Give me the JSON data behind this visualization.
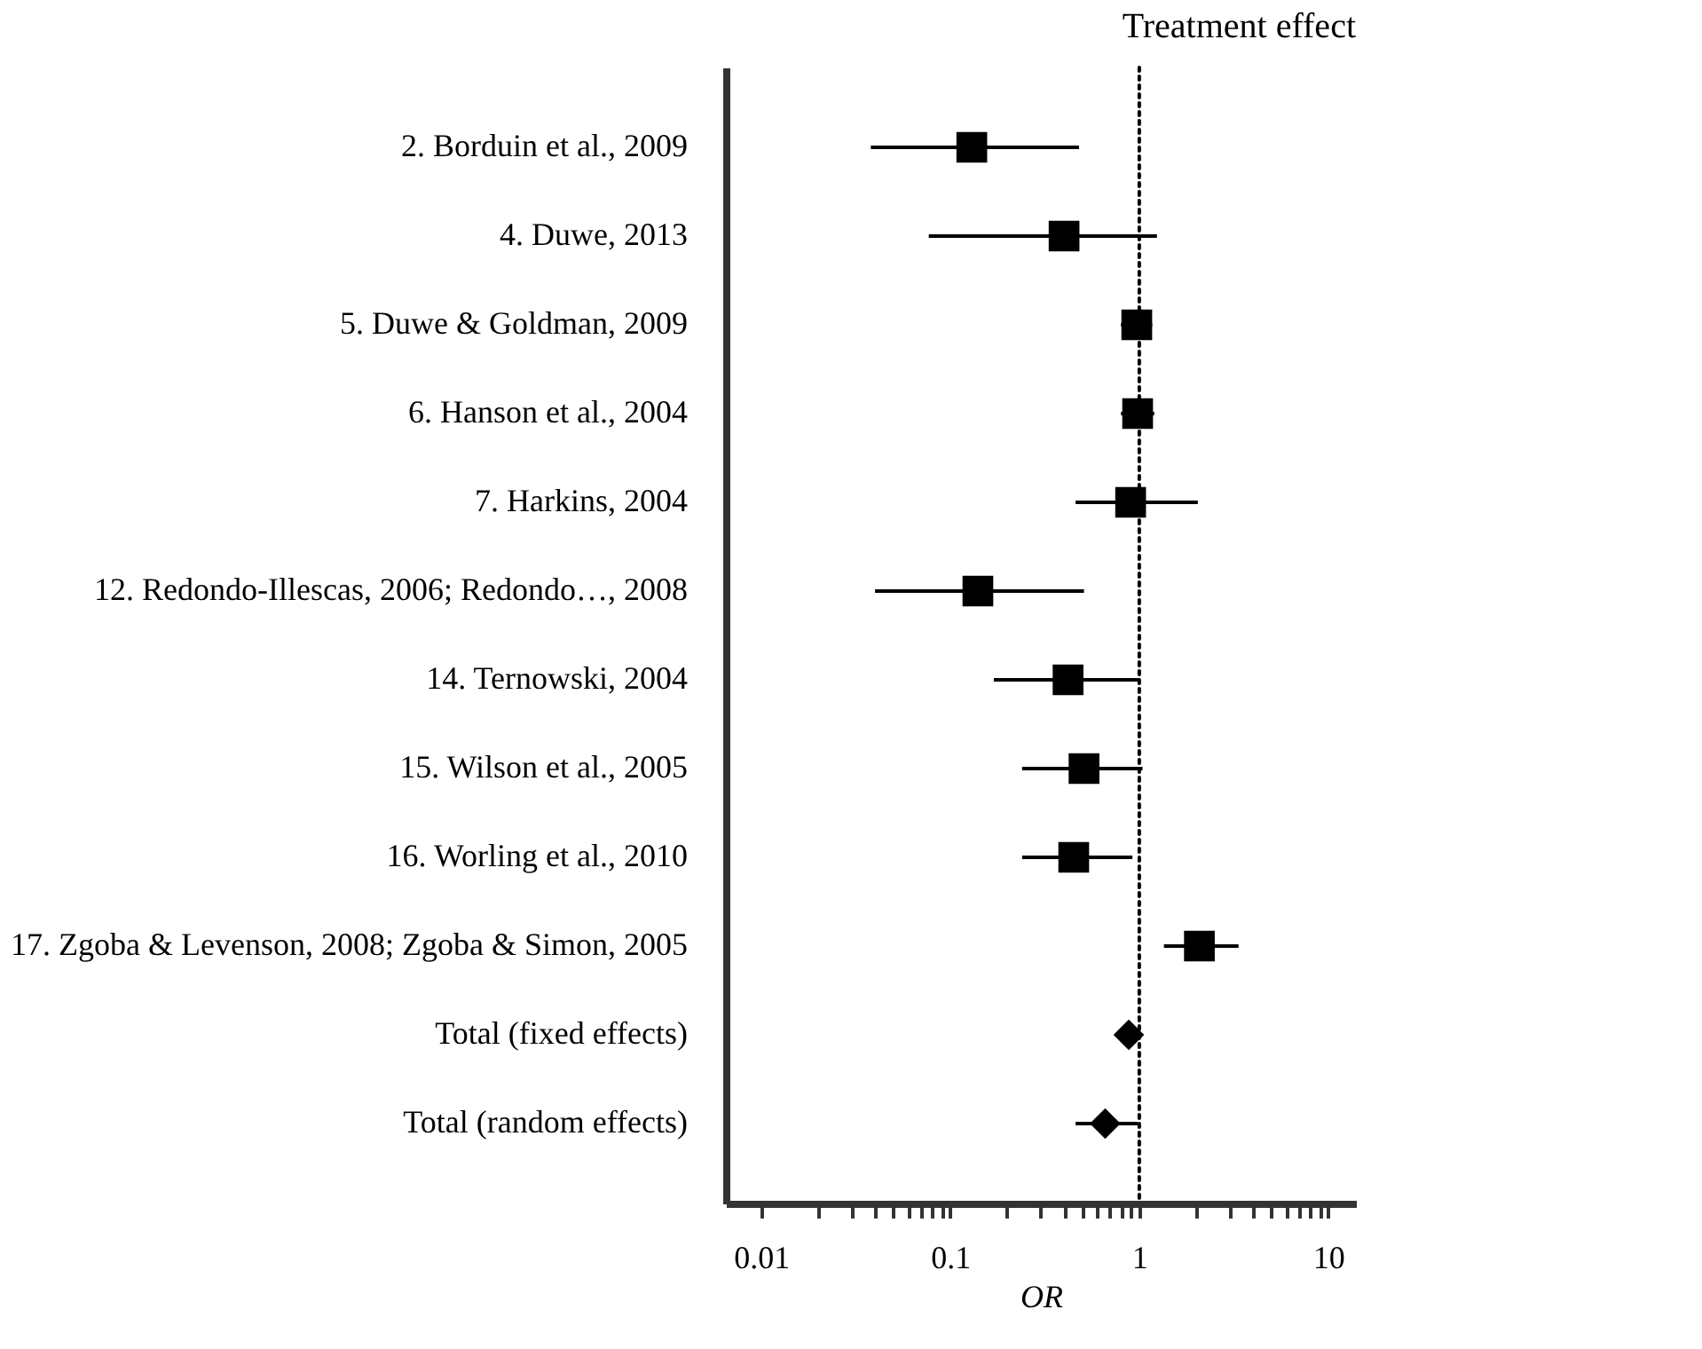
{
  "chart_data": {
    "type": "scatter",
    "title": "Treatment effect",
    "xlabel": "OR",
    "orientation": "horizontal",
    "log": "x",
    "grid": false,
    "categories": [
      "2. Borduin et al., 2009",
      "4. Duwe, 2013",
      "5. Duwe & Goldman, 2009",
      "6. Hanson et al., 2004",
      "7. Harkins, 2004",
      "12. Redondo-Illescas, 2006; Redondo…, 2008",
      "14. Ternowski, 2004",
      "15. Wilson et al., 2005",
      "16. Worling et al., 2010",
      "17. Zgoba & Levenson, 2008; Zgoba & Simon, 2005",
      "Total (fixed effects)",
      "Total (random effects)"
    ],
    "series": [
      {
        "color": "#000000",
        "marker": "square",
        "values": [
          0.13,
          0.4,
          0.97,
          0.98,
          0.9,
          0.14,
          0.42,
          0.51,
          0.45,
          2.08,
          null,
          null
        ],
        "errors": [
          [
            0.038,
            0.48
          ],
          [
            0.077,
            1.24
          ],
          [
            0.8,
            1.17
          ],
          [
            0.8,
            1.2
          ],
          [
            0.46,
            2.04
          ],
          [
            0.04,
            0.51
          ],
          [
            0.17,
            1.0
          ],
          [
            0.24,
            1.04
          ],
          [
            0.24,
            0.92
          ],
          [
            1.35,
            3.35
          ],
          null,
          null
        ]
      },
      {
        "color": "#000000",
        "marker": "diamond",
        "values": [
          null,
          null,
          null,
          null,
          null,
          null,
          null,
          null,
          null,
          null,
          0.88,
          0.66
        ],
        "errors": [
          null,
          null,
          null,
          null,
          null,
          null,
          null,
          null,
          null,
          null,
          [
            0.79,
            1.0
          ],
          [
            0.46,
            0.98
          ]
        ]
      }
    ],
    "xlim": [
      0.0065,
      14
    ],
    "xticks": [
      0.01,
      {
        "value": 0.02,
        "label": null
      },
      {
        "value": 0.03,
        "label": null
      },
      {
        "value": 0.04,
        "label": null
      },
      {
        "value": 0.05,
        "label": null
      },
      {
        "value": 0.06,
        "label": null
      },
      {
        "value": 0.07,
        "label": null
      },
      {
        "value": 0.08,
        "label": null
      },
      {
        "value": 0.09,
        "label": null
      },
      0.1,
      {
        "value": 0.2,
        "label": null
      },
      {
        "value": 0.3,
        "label": null
      },
      {
        "value": 0.4,
        "label": null
      },
      {
        "value": 0.5,
        "label": null
      },
      {
        "value": 0.6,
        "label": null
      },
      {
        "value": 0.7,
        "label": null
      },
      {
        "value": 0.8,
        "label": null
      },
      {
        "value": 0.9,
        "label": null
      },
      1,
      {
        "value": 2,
        "label": null
      },
      {
        "value": 3,
        "label": null
      },
      {
        "value": 4,
        "label": null
      },
      {
        "value": 5,
        "label": null
      },
      {
        "value": 6,
        "label": null
      },
      {
        "value": 7,
        "label": null
      },
      {
        "value": 8,
        "label": null
      },
      {
        "value": 9,
        "label": null
      },
      10
    ],
    "ref_lines": [
      {
        "axis": "x",
        "value": 1,
        "line_style": "dotted",
        "color": "#000000"
      }
    ]
  }
}
